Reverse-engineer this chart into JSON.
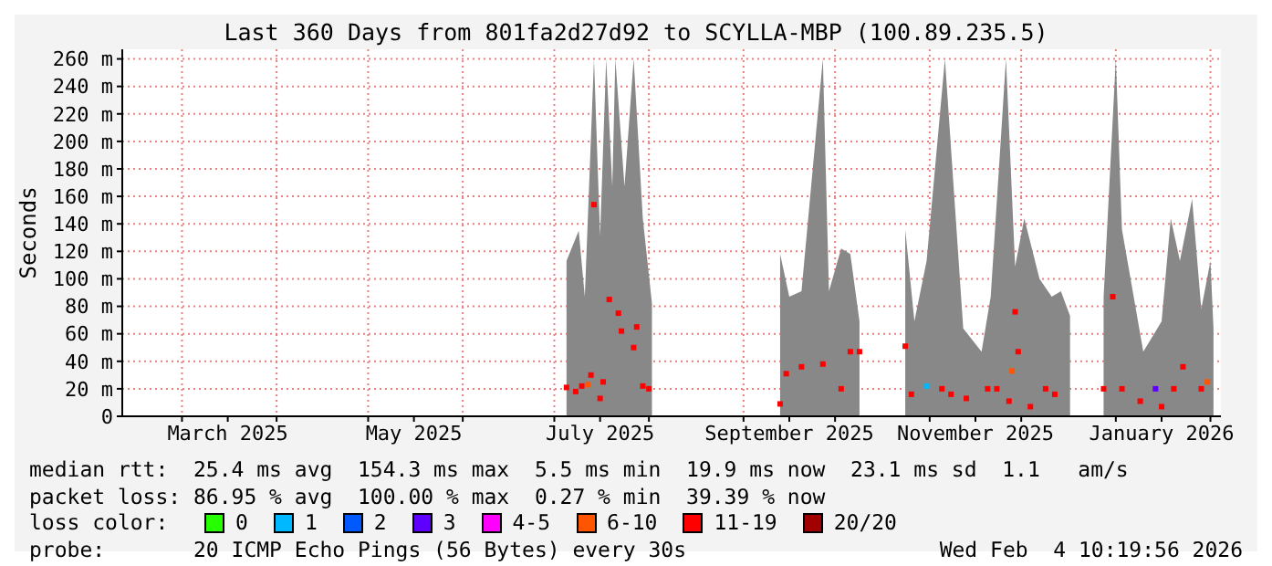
{
  "chart_data": {
    "type": "scatter",
    "title": "Last 360 Days from 801fa2d27d92 to SCYLLA-MBP (100.89.235.5)",
    "ylabel": "Seconds",
    "legend_title": "loss color:",
    "legend": "bottom",
    "grid": true,
    "marker": "square",
    "xlim": [
      "2025-02-09T10:20",
      "2026-02-04T10:20"
    ],
    "xticks": [
      {
        "value": "2025-03-01",
        "label": null
      },
      {
        "value": "2025-03-16",
        "label": "March 2025"
      },
      {
        "value": "2025-04-01",
        "label": null
      },
      {
        "value": "2025-05-01",
        "label": null
      },
      {
        "value": "2025-05-16",
        "label": "May 2025"
      },
      {
        "value": "2025-06-01",
        "label": null
      },
      {
        "value": "2025-07-01",
        "label": null
      },
      {
        "value": "2025-07-16",
        "label": "July 2025"
      },
      {
        "value": "2025-08-01",
        "label": null
      },
      {
        "value": "2025-09-01",
        "label": null
      },
      {
        "value": "2025-09-16",
        "label": "September 2025"
      },
      {
        "value": "2025-10-01",
        "label": null
      },
      {
        "value": "2025-11-01",
        "label": null
      },
      {
        "value": "2025-11-16",
        "label": "November 2025"
      },
      {
        "value": "2025-12-01",
        "label": null
      },
      {
        "value": "2026-01-01",
        "label": null
      },
      {
        "value": "2026-01-16",
        "label": "January 2026"
      },
      {
        "value": "2026-02-01",
        "label": null
      }
    ],
    "ylim": [
      0,
      267
    ],
    "yticks": [
      0,
      {
        "value": 20,
        "label": "20 m"
      },
      {
        "value": 40,
        "label": "40 m"
      },
      {
        "value": 60,
        "label": "60 m"
      },
      {
        "value": 80,
        "label": "80 m"
      },
      {
        "value": 100,
        "label": "100 m"
      },
      {
        "value": 120,
        "label": "120 m"
      },
      {
        "value": 140,
        "label": "140 m"
      },
      {
        "value": 160,
        "label": "160 m"
      },
      {
        "value": 180,
        "label": "180 m"
      },
      {
        "value": 200,
        "label": "200 m"
      },
      {
        "value": 220,
        "label": "220 m"
      },
      {
        "value": 240,
        "label": "240 m"
      },
      {
        "value": 260,
        "label": "260 m"
      }
    ],
    "series": [
      {
        "type": "area",
        "color": "#888888",
        "marker": "none",
        "x": [
          "2025-07-05",
          "2025-07-09",
          "2025-07-11",
          "2025-07-14",
          "2025-07-16",
          "2025-07-18",
          "2025-07-20",
          "2025-07-21",
          "2025-07-24",
          "2025-07-27",
          "2025-07-30",
          "2025-08-02",
          "2025-08-15",
          "2025-09-13",
          "2025-09-16",
          "2025-09-20",
          "2025-09-27",
          "2025-09-29",
          "2025-10-03",
          "2025-10-06",
          "2025-10-09",
          "2025-10-17",
          "2025-10-24",
          "2025-10-27",
          "2025-10-31",
          "2025-11-06",
          "2025-11-12",
          "2025-11-18",
          "2025-11-21",
          "2025-11-26",
          "2025-11-29",
          "2025-12-02",
          "2025-12-07",
          "2025-12-11",
          "2025-12-14",
          "2025-12-17",
          "2025-12-22",
          "2025-12-28",
          "2026-01-01",
          "2026-01-03",
          "2026-01-10",
          "2026-01-16",
          "2026-01-19",
          "2026-01-22",
          "2026-01-26",
          "2026-01-29",
          "2026-02-01",
          "2026-02-02"
        ],
        "values": [
          113,
          135,
          87,
          260,
          131,
          260,
          167,
          260,
          167,
          260,
          144,
          82,
          null,
          118,
          87,
          91,
          260,
          91,
          122,
          118,
          69,
          null,
          136,
          69,
          113,
          260,
          64,
          47,
          87,
          260,
          109,
          144,
          100,
          87,
          91,
          73,
          null,
          87,
          260,
          136,
          47,
          69,
          144,
          113,
          158,
          78,
          113,
          64
        ]
      },
      {
        "name": "0",
        "color": "#26ff00",
        "values": [
          null
        ]
      },
      {
        "name": "1",
        "color": "#00b8ff",
        "x": [
          "2025-10-31"
        ],
        "values": [
          22
        ]
      },
      {
        "name": "2",
        "color": "#0059ff",
        "values": [
          null
        ]
      },
      {
        "name": "3",
        "color": "#5e00ff",
        "x": [
          "2026-01-14"
        ],
        "values": [
          20
        ]
      },
      {
        "name": "4-5",
        "color": "#ff00ff",
        "values": [
          null
        ]
      },
      {
        "name": "6-10",
        "color": "#ff5500",
        "x": [
          "2025-07-12",
          "2025-11-28",
          "2026-01-31"
        ],
        "values": [
          23,
          33,
          25
        ]
      },
      {
        "name": "11-19",
        "color": "#ff0000",
        "x": [
          "2025-07-05",
          "2025-07-08",
          "2025-07-10",
          "2025-07-13",
          "2025-07-14",
          "2025-07-16",
          "2025-07-17",
          "2025-07-19",
          "2025-07-22",
          "2025-07-23",
          "2025-07-27",
          "2025-07-28",
          "2025-07-30",
          "2025-08-01",
          "2025-09-13",
          "2025-09-15",
          "2025-09-20",
          "2025-09-27",
          "2025-10-03",
          "2025-10-06",
          "2025-10-09",
          "2025-10-24",
          "2025-10-26",
          "2025-11-05",
          "2025-11-08",
          "2025-11-13",
          "2025-11-20",
          "2025-11-23",
          "2025-11-27",
          "2025-11-29",
          "2025-11-30",
          "2025-12-04",
          "2025-12-09",
          "2025-12-12",
          "2025-12-28",
          "2025-12-31",
          "2026-01-03",
          "2026-01-09",
          "2026-01-16",
          "2026-01-20",
          "2026-01-23",
          "2026-01-29"
        ],
        "values": [
          21,
          18,
          22,
          30,
          154,
          13,
          25,
          85,
          75,
          62,
          50,
          65,
          22,
          20,
          9,
          31,
          36,
          38,
          20,
          47,
          47,
          51,
          16,
          20,
          16,
          13,
          20,
          20,
          11,
          76,
          47,
          7,
          20,
          16,
          20,
          87,
          20,
          11,
          7,
          20,
          36,
          20
        ]
      },
      {
        "name": "20/20",
        "color": "#a10000",
        "values": [
          null
        ]
      }
    ],
    "annotations": [
      "median rtt:  25.4 ms avg  154.3 ms max  5.5 ms min  19.9 ms now  23.1 ms sd  1.1   am/s",
      "packet loss: 86.95 % avg  100.00 % max  0.27 % min  39.39 % now",
      "probe:       20 ICMP Echo Pings (56 Bytes) every 30s",
      "Wed Feb  4 10:19:56 2026"
    ]
  }
}
